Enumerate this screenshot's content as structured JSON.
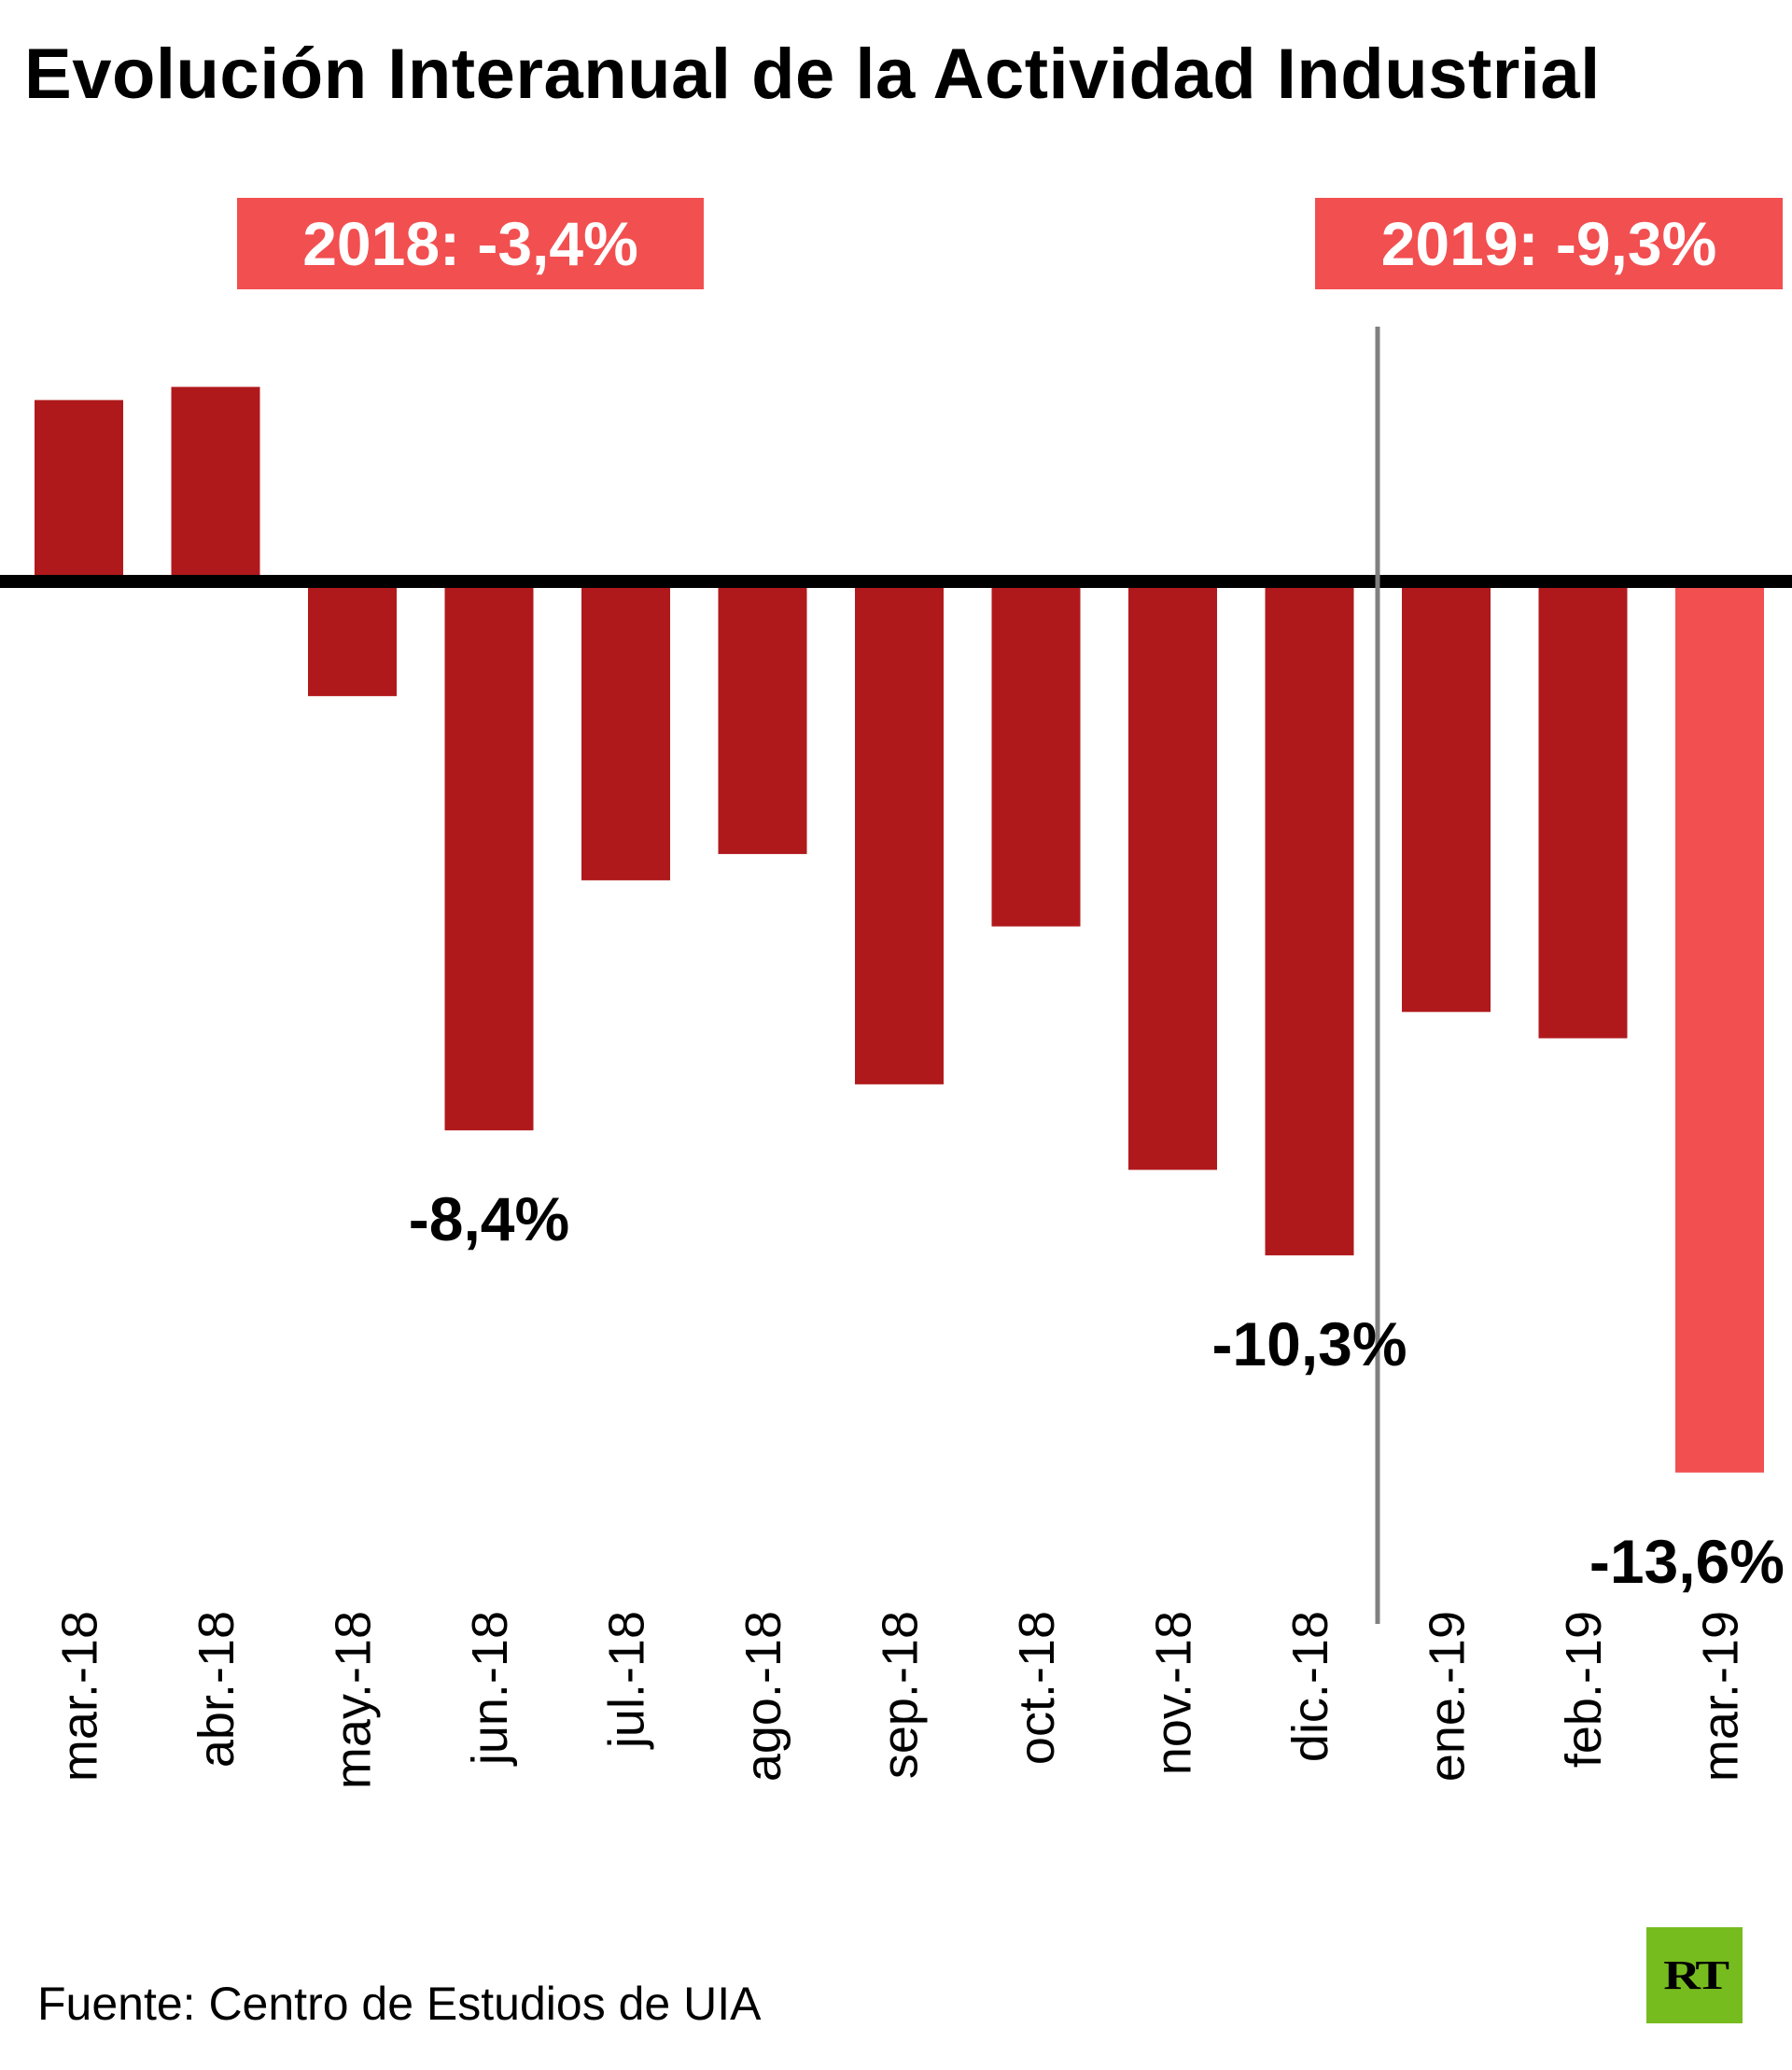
{
  "chart_data": {
    "type": "bar",
    "title": "Evolución Interanual de la Actividad Industrial",
    "xlabel": "",
    "ylabel": "",
    "categories": [
      "mar.-18",
      "abr.-18",
      "may.-18",
      "jun.-18",
      "jul.-18",
      "ago.-18",
      "sep.-18",
      "oct.-18",
      "nov.-18",
      "dic.-18",
      "ene.-19",
      "feb.-19",
      "mar.-19"
    ],
    "values": [
      2.7,
      2.9,
      -1.8,
      -8.4,
      -4.6,
      -4.2,
      -7.7,
      -5.3,
      -9.0,
      -10.3,
      -6.6,
      -7.0,
      -13.6
    ],
    "ylim": [
      -14,
      3.5
    ],
    "grid": false,
    "colors": {
      "default": "#b0191c",
      "highlight": "#f24f51",
      "baseline": "#000000",
      "separator": "#808080"
    },
    "highlight_category": "mar.-19",
    "data_labels": [
      {
        "category": "jun.-18",
        "text": "-8,4%"
      },
      {
        "category": "dic.-18",
        "text": "-10,3%"
      },
      {
        "category": "mar.-19",
        "text": "-13,6%"
      }
    ],
    "annotations": [
      {
        "text": "2018: -3,4%",
        "group": "2018"
      },
      {
        "text": "2019: -9,3%",
        "group": "2019"
      }
    ],
    "separator_between": [
      "dic.-18",
      "ene.-19"
    ]
  },
  "source": "Fuente: Centro de Estudios de UIA",
  "logo": {
    "text": "RT",
    "color": "#77bc1f"
  }
}
